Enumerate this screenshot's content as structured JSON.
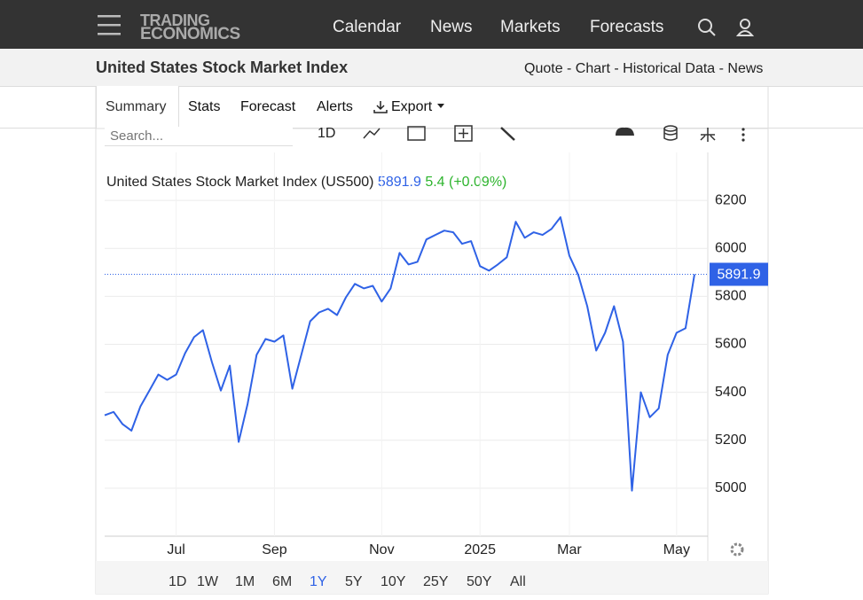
{
  "nav": {
    "logo_top": "TRADING",
    "logo_bottom": "ECONOMICS",
    "items": [
      "Calendar",
      "News",
      "Markets",
      "Forecasts"
    ]
  },
  "header": {
    "title": "United States Stock Market Index",
    "links": "Quote - Chart - Historical Data - News"
  },
  "tabs": [
    "Summary",
    "Stats",
    "Forecast",
    "Alerts",
    "Export"
  ],
  "toolbar": {
    "search_placeholder": "Search...",
    "interval": "1D"
  },
  "range_buttons": [
    "1D",
    "1W",
    "1M",
    "6M",
    "1Y",
    "5Y",
    "10Y",
    "25Y",
    "50Y",
    "All"
  ],
  "chart_data": {
    "type": "line",
    "title": "United States Stock Market Index (US500)",
    "change_label": "5.4 (+0.09%)",
    "categories": [
      null,
      null,
      null,
      null,
      null,
      null,
      null,
      null,
      "Jul",
      null,
      null,
      null,
      null,
      null,
      null,
      null,
      null,
      null,
      null,
      "Sep",
      null,
      null,
      null,
      null,
      null,
      null,
      null,
      null,
      null,
      null,
      null,
      "Nov",
      null,
      null,
      null,
      null,
      null,
      null,
      null,
      null,
      null,
      null,
      "2025",
      null,
      null,
      null,
      null,
      null,
      null,
      null,
      null,
      null,
      "Mar",
      null,
      null,
      null,
      null,
      null,
      null,
      null,
      null,
      null,
      null,
      null,
      "May",
      null,
      null
    ],
    "series": [
      {
        "name": "US500",
        "color": "#2f62e6",
        "values": [
          5304,
          5318,
          5267,
          5240,
          5341,
          5407,
          5474,
          5452,
          5474,
          5563,
          5630,
          5659,
          5526,
          5407,
          5511,
          5193,
          5352,
          5556,
          5622,
          5611,
          5637,
          5415,
          5556,
          5696,
          5733,
          5748,
          5722,
          5796,
          5852,
          5833,
          5844,
          5778,
          5833,
          5981,
          5933,
          5944,
          6037,
          6056,
          6074,
          6067,
          6019,
          6030,
          5926,
          5907,
          5933,
          5963,
          6111,
          6044,
          6067,
          6056,
          6081,
          6130,
          5970,
          5889,
          5759,
          5574,
          5648,
          5759,
          5611,
          4990,
          5400,
          5296,
          5333,
          5556,
          5648,
          5667,
          5891.9
        ]
      }
    ],
    "ylim": [
      4800,
      6400
    ],
    "yticks": [
      5000,
      5200,
      5400,
      5600,
      5800,
      6000,
      6200
    ],
    "grid": true,
    "change_color": "#2db42d"
  }
}
